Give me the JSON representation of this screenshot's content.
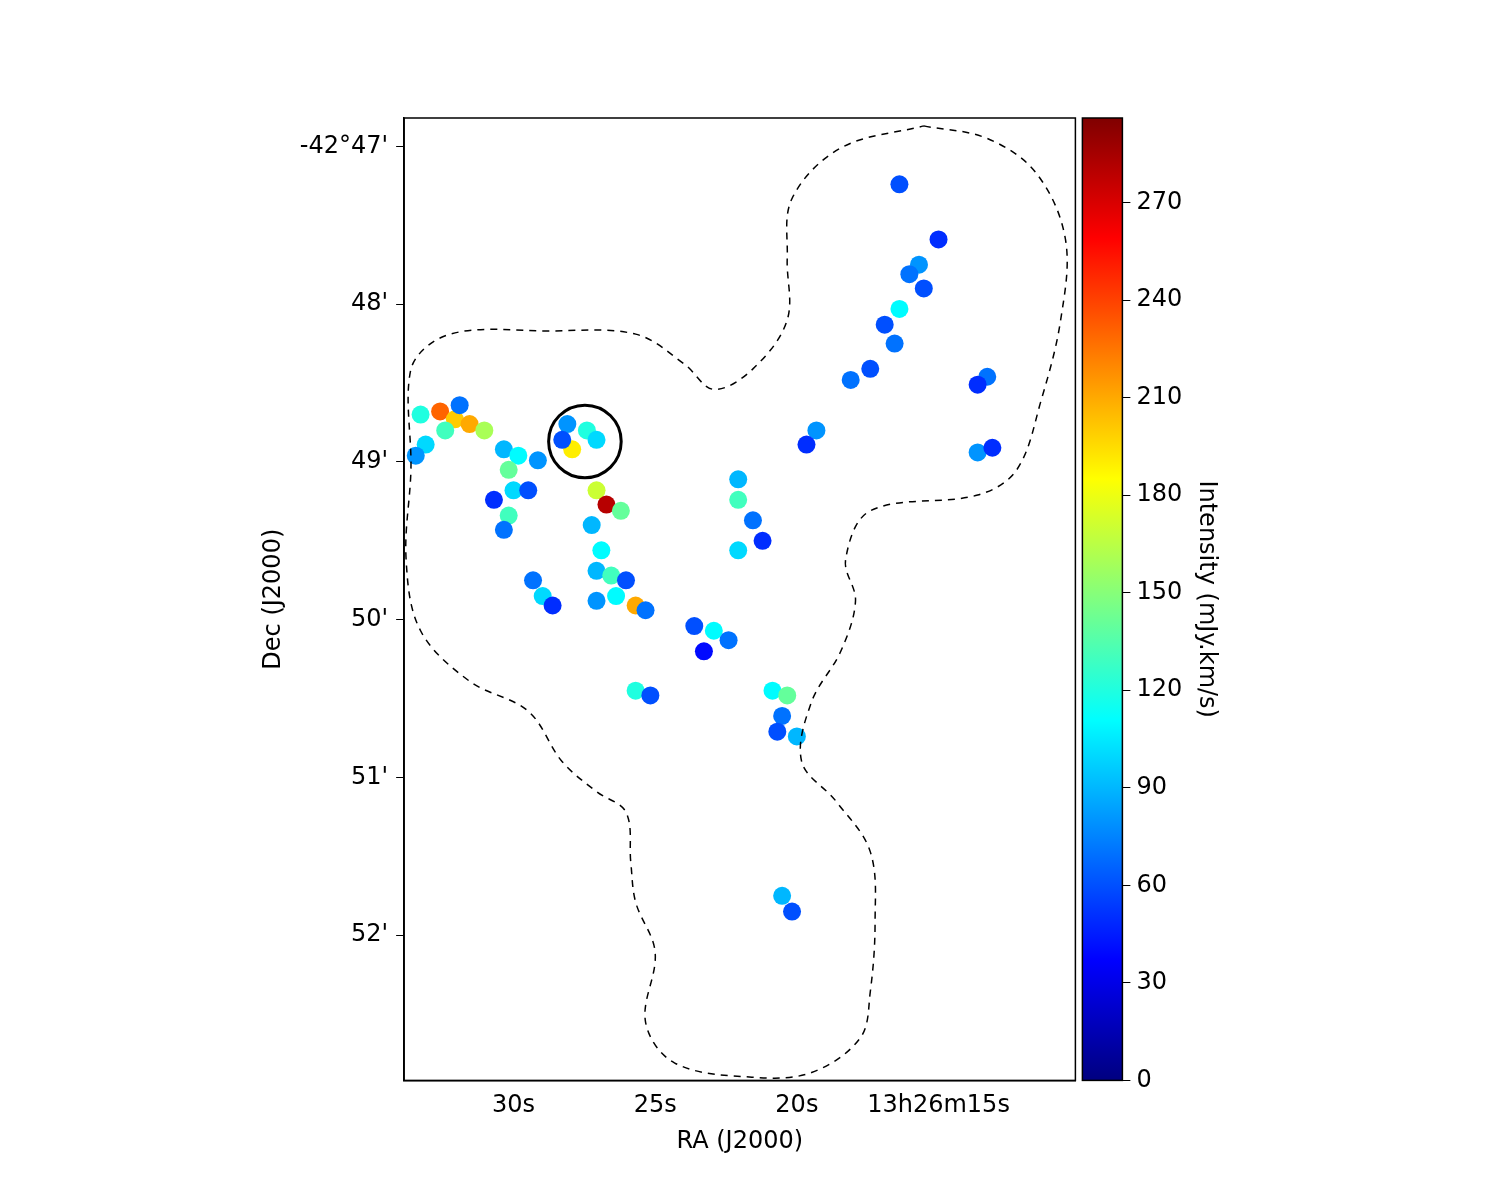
{
  "chart_data": {
    "type": "scatter",
    "x_label": "RA (J2000)",
    "y_label": "Dec (J2000)",
    "xlim": [
      33.86,
      10.17
    ],
    "ylim": [
      52.92,
      46.82
    ],
    "xticks": [
      {
        "value": 30,
        "label": "30s"
      },
      {
        "value": 25,
        "label": "25s"
      },
      {
        "value": 20,
        "label": "20s"
      },
      {
        "value": 15,
        "label": "13h26m15s"
      }
    ],
    "yticks": [
      {
        "value": 47,
        "label": "-42°47'"
      },
      {
        "value": 48,
        "label": "48'"
      },
      {
        "value": 49,
        "label": "49'"
      },
      {
        "value": 50,
        "label": "50'"
      },
      {
        "value": 51,
        "label": "51'"
      },
      {
        "value": 52,
        "label": "52'"
      }
    ],
    "grid": false,
    "marker": "circle",
    "x": [
      33.28,
      32.59,
      32.07,
      31.55,
      31.03,
      33.1,
      33.45,
      31.9,
      32.41,
      30.34,
      29.83,
      29.14,
      30.17,
      30.0,
      30.17,
      30.34,
      29.48,
      30.69,
      28.1,
      27.41,
      27.93,
      27.07,
      28.28,
      27.07,
      26.72,
      26.21,
      27.24,
      26.9,
      27.07,
      26.55,
      26.38,
      25.69,
      27.07,
      26.03,
      25.34,
      29.31,
      28.97,
      28.62,
      23.62,
      22.93,
      22.41,
      23.28,
      25.69,
      25.17,
      20.86,
      20.34,
      20.52,
      20.0,
      20.69,
      22.07,
      22.07,
      21.55,
      22.07,
      21.21,
      19.31,
      19.66,
      18.1,
      17.41,
      16.55,
      16.38,
      16.9,
      15.69,
      15.52,
      15.0,
      16.03,
      16.38,
      13.28,
      13.62,
      13.62,
      13.1,
      20.52,
      20.17
    ],
    "y": [
      48.7,
      48.68,
      48.73,
      48.76,
      48.8,
      48.89,
      48.96,
      48.64,
      48.8,
      48.92,
      48.96,
      48.99,
      49.05,
      49.18,
      49.34,
      49.43,
      49.18,
      49.24,
      48.76,
      48.8,
      48.92,
      48.86,
      48.86,
      49.18,
      49.27,
      49.31,
      49.4,
      49.56,
      49.69,
      49.72,
      49.85,
      49.91,
      49.88,
      49.75,
      49.94,
      49.75,
      49.85,
      49.91,
      50.04,
      50.07,
      50.13,
      50.2,
      50.45,
      50.48,
      50.45,
      50.48,
      50.61,
      50.74,
      50.71,
      49.11,
      49.24,
      49.37,
      49.56,
      49.5,
      48.8,
      48.89,
      48.48,
      48.41,
      48.25,
      48.03,
      48.13,
      47.75,
      47.9,
      47.59,
      47.81,
      47.24,
      48.46,
      48.51,
      48.94,
      48.91,
      51.75,
      51.85
    ],
    "intensity": [
      120,
      230,
      200,
      210,
      160,
      100,
      80,
      70,
      130,
      90,
      110,
      80,
      140,
      100,
      130,
      70,
      60,
      50,
      80,
      120,
      190,
      100,
      60,
      170,
      280,
      140,
      90,
      110,
      90,
      130,
      110,
      210,
      80,
      60,
      70,
      70,
      100,
      50,
      60,
      110,
      70,
      40,
      120,
      60,
      110,
      140,
      70,
      90,
      60,
      90,
      130,
      70,
      100,
      50,
      80,
      50,
      70,
      60,
      70,
      110,
      60,
      80,
      60,
      50,
      70,
      60,
      70,
      50,
      80,
      50,
      90,
      60
    ],
    "colorbar": {
      "label": "Intensity (mJy.km/s)",
      "range": [
        0,
        296
      ],
      "ticks": [
        0,
        30,
        60,
        90,
        120,
        150,
        180,
        210,
        240,
        270
      ]
    },
    "contour": {
      "line_style": "dashed",
      "color": "#000000",
      "x": [
        15.52,
        13.28,
        11.55,
        10.52,
        10.69,
        11.38,
        12.24,
        13.62,
        17.41,
        18.28,
        17.93,
        18.45,
        19.48,
        19.83,
        18.62,
        17.41,
        17.24,
        17.41,
        17.76,
        19.48,
        21.55,
        24.31,
        25.34,
        25.0,
        25.69,
        25.86,
        26.03,
        27.07,
        28.28,
        29.48,
        31.55,
        33.28,
        33.79,
        33.62,
        33.62,
        32.24,
        28.79,
        25.69,
        23.97,
        22.93,
        21.55,
        20.34,
        20.34,
        20.17,
        18.45,
        15.52
      ],
      "y": [
        46.87,
        46.95,
        47.17,
        47.59,
        48.1,
        48.61,
        49.05,
        49.21,
        49.31,
        49.62,
        49.88,
        50.2,
        50.52,
        50.9,
        51.15,
        51.47,
        51.92,
        52.36,
        52.65,
        52.87,
        52.9,
        52.81,
        52.55,
        52.11,
        51.79,
        51.54,
        51.22,
        51.09,
        50.9,
        50.58,
        50.39,
        50.07,
        49.62,
        49.05,
        48.41,
        48.19,
        48.17,
        48.19,
        48.38,
        48.54,
        48.41,
        48.1,
        47.71,
        47.33,
        47.01,
        46.87
      ]
    },
    "circle": {
      "x": 27.48,
      "y": 48.87,
      "radius": 0.23,
      "color": "#000000"
    }
  }
}
